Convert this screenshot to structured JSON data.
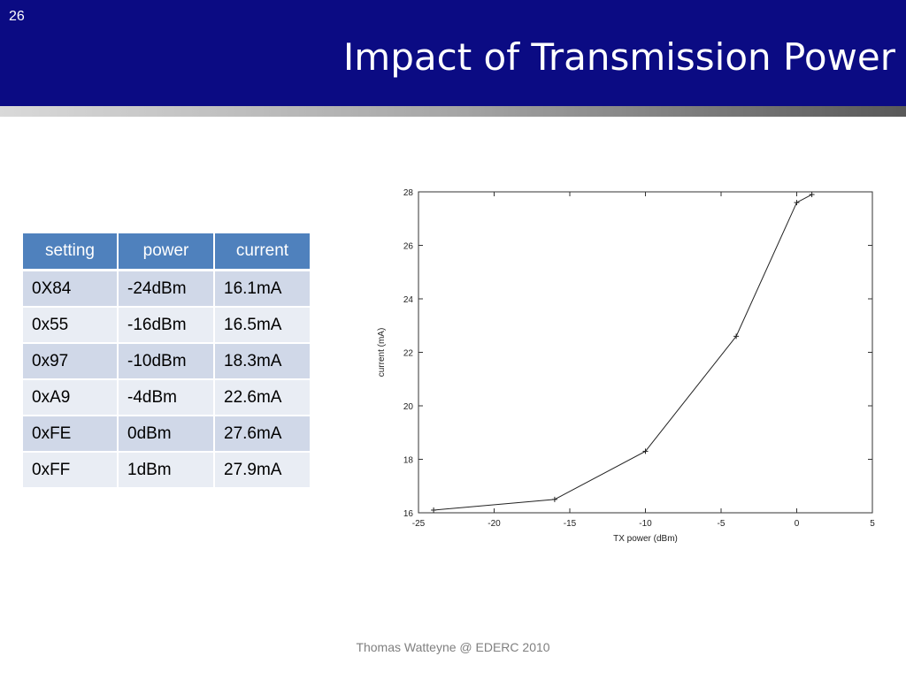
{
  "slide": {
    "number": "26",
    "title": "Impact of Transmission Power",
    "footer": "Thomas Watteyne @ EDERC 2010"
  },
  "table": {
    "headers": [
      "setting",
      "power",
      "current"
    ],
    "rows": [
      [
        "0X84",
        "-24dBm",
        "16.1mA"
      ],
      [
        "0x55",
        "-16dBm",
        "16.5mA"
      ],
      [
        "0x97",
        "-10dBm",
        "18.3mA"
      ],
      [
        "0xA9",
        "-4dBm",
        "22.6mA"
      ],
      [
        "0xFE",
        "0dBm",
        "27.6mA"
      ],
      [
        "0xFF",
        "1dBm",
        "27.9mA"
      ]
    ]
  },
  "chart_data": {
    "type": "line",
    "title": "",
    "xlabel": "TX power (dBm)",
    "ylabel": "current (mA)",
    "xlim": [
      -25,
      5
    ],
    "ylim": [
      16,
      28
    ],
    "xticks": [
      -25,
      -20,
      -15,
      -10,
      -5,
      0,
      5
    ],
    "yticks": [
      16,
      18,
      20,
      22,
      24,
      26,
      28
    ],
    "grid": false,
    "series": [
      {
        "x": [
          -24,
          -16,
          -10,
          -4,
          0,
          1
        ],
        "y": [
          16.1,
          16.5,
          18.3,
          22.6,
          27.6,
          27.9
        ],
        "color": "#222222",
        "marker": "+"
      }
    ]
  }
}
